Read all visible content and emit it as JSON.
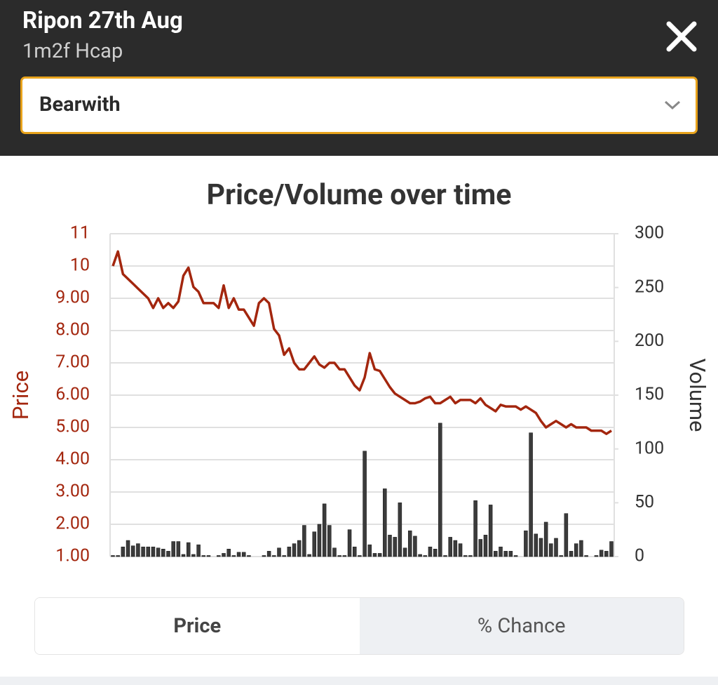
{
  "header": {
    "title": "Ripon 27th Aug",
    "subtitle": "1m2f Hcap",
    "selected_runner": "Bearwith"
  },
  "chart_data": {
    "type": "line",
    "title": "Price/Volume over time",
    "y_label": "Price",
    "y2_label": "Volume",
    "ylim": [
      1,
      11
    ],
    "yticks": [
      {
        "value": 1,
        "label": "1.00"
      },
      {
        "value": 2,
        "label": "2.00"
      },
      {
        "value": 3,
        "label": "3.00"
      },
      {
        "value": 4,
        "label": "4.00"
      },
      {
        "value": 5,
        "label": "5.00"
      },
      {
        "value": 6,
        "label": "6.00"
      },
      {
        "value": 7,
        "label": "7.00"
      },
      {
        "value": 8,
        "label": "8.00"
      },
      {
        "value": 9,
        "label": "9.00"
      },
      10,
      11
    ],
    "y2lim": [
      0,
      300
    ],
    "y2ticks": [
      0,
      50,
      100,
      150,
      200,
      250,
      300
    ],
    "grid": true,
    "series": [
      {
        "type": "line",
        "color": "#a3260e",
        "values": [
          10.0,
          10.45,
          9.75,
          9.6,
          9.45,
          9.3,
          9.15,
          9.0,
          8.7,
          9.0,
          8.7,
          8.85,
          8.7,
          8.9,
          9.7,
          9.95,
          9.35,
          9.2,
          8.85,
          8.85,
          8.85,
          8.7,
          9.4,
          8.7,
          9.0,
          8.65,
          8.65,
          8.4,
          8.15,
          8.85,
          9.0,
          8.85,
          8.05,
          7.85,
          7.25,
          7.45,
          7.0,
          6.8,
          6.8,
          7.0,
          7.2,
          6.95,
          6.85,
          7.0,
          7.0,
          6.8,
          6.8,
          6.55,
          6.3,
          6.15,
          6.55,
          7.3,
          6.8,
          6.75,
          6.5,
          6.25,
          6.05,
          5.95,
          5.85,
          5.75,
          5.75,
          5.8,
          5.9,
          5.95,
          5.75,
          5.75,
          5.85,
          5.95,
          5.75,
          5.85,
          5.85,
          5.85,
          5.75,
          5.9,
          5.7,
          5.6,
          5.5,
          5.7,
          5.65,
          5.65,
          5.65,
          5.55,
          5.65,
          5.55,
          5.45,
          5.2,
          5.0,
          5.1,
          5.2,
          5.1,
          5.0,
          5.1,
          5.0,
          5.0,
          5.0,
          4.9,
          4.9,
          4.9,
          4.8,
          4.9
        ]
      },
      {
        "type": "bar",
        "axis": "y2",
        "color": "#3b3b3b",
        "values": [
          1,
          1,
          9,
          15,
          10,
          12,
          9,
          9,
          9,
          8,
          7,
          5,
          14,
          14,
          2,
          13,
          2,
          11,
          1,
          1,
          0,
          1,
          3,
          7,
          1,
          4,
          4,
          1,
          0,
          0,
          1,
          5,
          1,
          8,
          1,
          9,
          12,
          15,
          29,
          2,
          23,
          30,
          49,
          29,
          8,
          1,
          1,
          25,
          9,
          1,
          98,
          11,
          3,
          3,
          63,
          20,
          18,
          50,
          8,
          24,
          19,
          2,
          1,
          9,
          7,
          124,
          1,
          18,
          15,
          12,
          1,
          1,
          52,
          16,
          20,
          48,
          5,
          9,
          5,
          5,
          1,
          0,
          24,
          115,
          21,
          17,
          32,
          12,
          17,
          1,
          40,
          5,
          12,
          15,
          1,
          0,
          1,
          6,
          5,
          14
        ]
      }
    ]
  },
  "tabs": [
    "Price",
    "% Chance"
  ],
  "active_tab": 0
}
